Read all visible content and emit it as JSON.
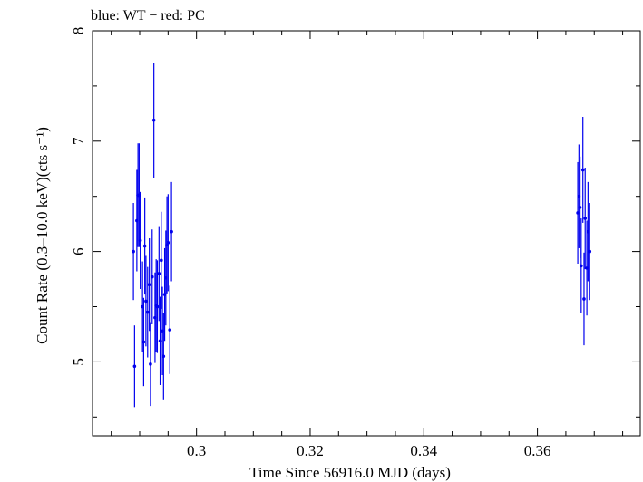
{
  "chart_data": {
    "type": "scatter",
    "title": "blue: WT − red: PC",
    "xlabel": "Time Since 56916.0 MJD (days)",
    "ylabel": "Count Rate (0.3–10.0 keV)(cts s⁻¹)",
    "xlim": [
      0.2817,
      0.3781
    ],
    "ylim": [
      4.33,
      8.0
    ],
    "x_ticks": [
      {
        "value": 0.3,
        "label": "0.3"
      },
      {
        "value": 0.32,
        "label": "0.32"
      },
      {
        "value": 0.34,
        "label": "0.34"
      },
      {
        "value": 0.36,
        "label": "0.36"
      }
    ],
    "y_ticks": [
      {
        "value": 5,
        "label": "5"
      },
      {
        "value": 6,
        "label": "6"
      },
      {
        "value": 7,
        "label": "7"
      },
      {
        "value": 8,
        "label": "8"
      }
    ],
    "series": [
      {
        "name": "WT",
        "color": "#0000ee",
        "points": [
          {
            "x": 0.2889,
            "y": 6.0,
            "yerr": 0.44
          },
          {
            "x": 0.2891,
            "y": 4.96,
            "yerr": 0.37
          },
          {
            "x": 0.2895,
            "y": 6.28,
            "yerr": 0.46
          },
          {
            "x": 0.2897,
            "y": 6.51,
            "yerr": 0.47
          },
          {
            "x": 0.2899,
            "y": 6.51,
            "yerr": 0.47
          },
          {
            "x": 0.2901,
            "y": 6.1,
            "yerr": 0.44
          },
          {
            "x": 0.2905,
            "y": 5.5,
            "yerr": 0.41
          },
          {
            "x": 0.2907,
            "y": 5.18,
            "yerr": 0.4
          },
          {
            "x": 0.2909,
            "y": 6.05,
            "yerr": 0.44
          },
          {
            "x": 0.2911,
            "y": 5.55,
            "yerr": 0.41
          },
          {
            "x": 0.2914,
            "y": 5.45,
            "yerr": 0.41
          },
          {
            "x": 0.2917,
            "y": 5.7,
            "yerr": 0.42
          },
          {
            "x": 0.2919,
            "y": 4.98,
            "yerr": 0.38
          },
          {
            "x": 0.2922,
            "y": 5.77,
            "yerr": 0.43
          },
          {
            "x": 0.2925,
            "y": 7.19,
            "yerr": 0.52
          },
          {
            "x": 0.2927,
            "y": 5.4,
            "yerr": 0.41
          },
          {
            "x": 0.2929,
            "y": 5.51,
            "yerr": 0.42
          },
          {
            "x": 0.2931,
            "y": 5.5,
            "yerr": 0.42
          },
          {
            "x": 0.2934,
            "y": 5.8,
            "yerr": 0.43
          },
          {
            "x": 0.2936,
            "y": 5.19,
            "yerr": 0.4
          },
          {
            "x": 0.2938,
            "y": 5.92,
            "yerr": 0.44
          },
          {
            "x": 0.294,
            "y": 5.28,
            "yerr": 0.4
          },
          {
            "x": 0.2942,
            "y": 5.05,
            "yerr": 0.39
          },
          {
            "x": 0.2944,
            "y": 5.61,
            "yerr": 0.42
          },
          {
            "x": 0.2946,
            "y": 5.76,
            "yerr": 0.43
          },
          {
            "x": 0.2948,
            "y": 6.06,
            "yerr": 0.44
          },
          {
            "x": 0.295,
            "y": 6.08,
            "yerr": 0.44
          },
          {
            "x": 0.2953,
            "y": 5.29,
            "yerr": 0.4
          },
          {
            "x": 0.2956,
            "y": 6.18,
            "yerr": 0.45
          },
          {
            "x": 0.3671,
            "y": 6.35,
            "yerr": 0.46
          },
          {
            "x": 0.3673,
            "y": 6.5,
            "yerr": 0.47
          },
          {
            "x": 0.3675,
            "y": 6.4,
            "yerr": 0.46
          },
          {
            "x": 0.3677,
            "y": 5.87,
            "yerr": 0.43
          },
          {
            "x": 0.368,
            "y": 6.74,
            "yerr": 0.48
          },
          {
            "x": 0.3682,
            "y": 5.57,
            "yerr": 0.42
          },
          {
            "x": 0.3684,
            "y": 6.3,
            "yerr": 0.46
          },
          {
            "x": 0.3687,
            "y": 5.85,
            "yerr": 0.43
          },
          {
            "x": 0.3689,
            "y": 6.18,
            "yerr": 0.45
          },
          {
            "x": 0.3692,
            "y": 6.0,
            "yerr": 0.44
          }
        ]
      }
    ]
  }
}
